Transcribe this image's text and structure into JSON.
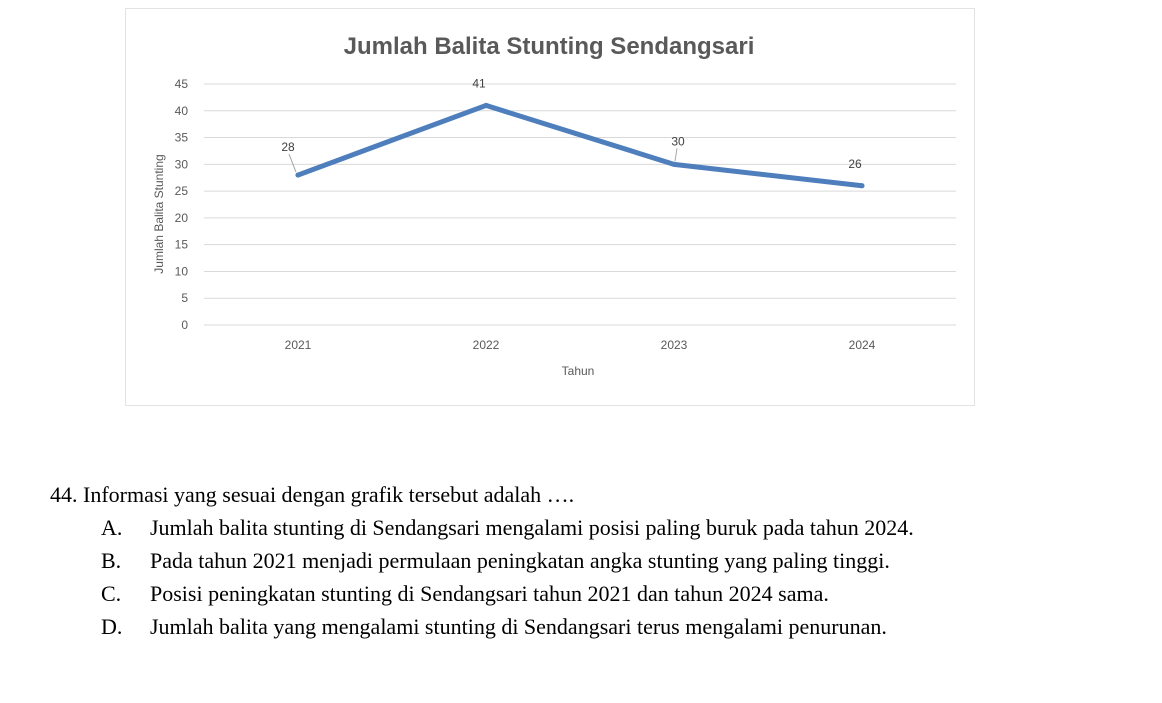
{
  "chart_data": {
    "type": "line",
    "title": "Jumlah Balita Stunting Sendangsari",
    "xlabel": "Tahun",
    "ylabel": "Jumlah Balita Stunting",
    "categories": [
      "2021",
      "2022",
      "2023",
      "2024"
    ],
    "series": [
      {
        "name": "Jumlah Balita Stunting",
        "values": [
          28,
          41,
          30,
          26
        ]
      }
    ],
    "ylim": [
      0,
      45
    ],
    "yticks": [
      "0",
      "5",
      "10",
      "15",
      "20",
      "25",
      "30",
      "35",
      "40",
      "45"
    ],
    "data_labels": [
      "28",
      "41",
      "30",
      "26"
    ],
    "grid": true,
    "color": "#4e7fbc"
  },
  "question": {
    "stem": "44. Informasi yang sesuai dengan grafik tersebut adalah ….",
    "options": [
      {
        "letter": "A.",
        "text": "Jumlah balita stunting di Sendangsari mengalami posisi paling buruk pada tahun 2024."
      },
      {
        "letter": "B.",
        "text": "Pada tahun 2021 menjadi permulaan peningkatan angka stunting yang paling tinggi."
      },
      {
        "letter": "C.",
        "text": "Posisi peningkatan stunting di Sendangsari tahun 2021 dan tahun 2024 sama."
      },
      {
        "letter": "D.",
        "text": "Jumlah balita yang mengalami stunting di Sendangsari terus mengalami penurunan."
      }
    ]
  }
}
